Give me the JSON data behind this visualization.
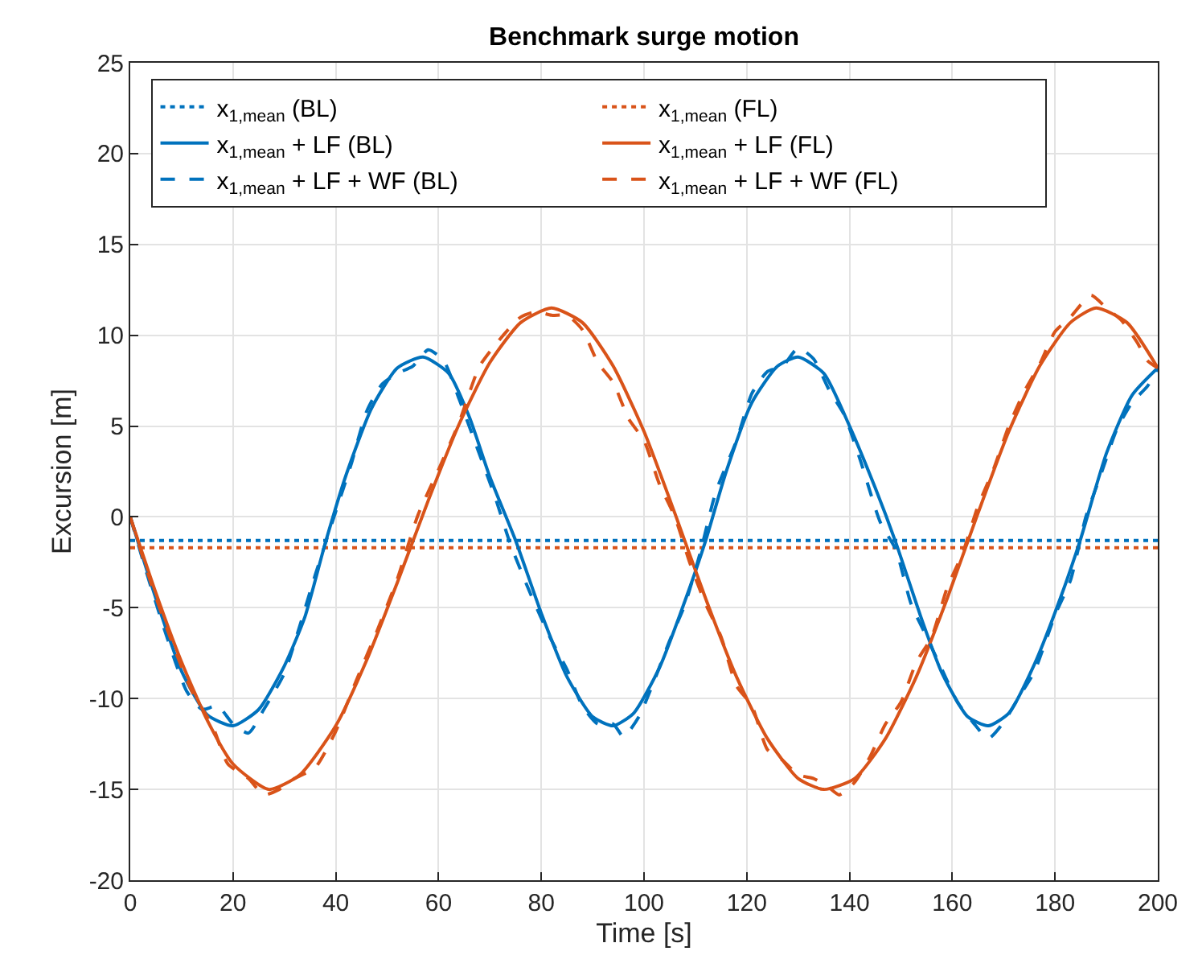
{
  "chart_data": {
    "type": "line",
    "title": "Benchmark surge motion",
    "xlabel": "Time [s]",
    "ylabel": "Excursion [m]",
    "xlim": [
      0,
      200
    ],
    "xticks": [
      0,
      20,
      40,
      60,
      80,
      100,
      120,
      140,
      160,
      180,
      200
    ],
    "ylim": [
      -20,
      25
    ],
    "yticks": [
      -20,
      -15,
      -10,
      -5,
      0,
      5,
      10,
      15,
      20,
      25
    ],
    "grid": true,
    "legend": "top left",
    "marker": "none",
    "series": [
      {
        "name": "x$_{1,mean}$ (BL)",
        "color": "#0072bd",
        "line_style": "dotted",
        "x": [
          0,
          200
        ],
        "values": [
          -1.3,
          -1.3
        ]
      },
      {
        "name": "x$_{1,mean}$ (FL)",
        "color": "#d95319",
        "line_style": "dotted",
        "x": [
          0,
          200
        ],
        "values": [
          -1.7,
          -1.7
        ]
      },
      {
        "name": "x$_{1,mean}$ + LF (BL)",
        "color": "#0072bd",
        "line_style": "solid",
        "x": [
          0,
          5,
          10,
          15,
          20,
          25,
          30,
          34,
          38,
          42,
          47,
          52,
          57,
          62,
          66,
          70,
          75,
          80,
          85,
          90,
          94,
          98,
          103,
          108,
          112,
          116,
          121,
          126,
          130,
          135,
          140,
          145,
          149,
          154,
          158,
          163,
          167,
          171,
          176,
          181,
          185,
          190,
          195,
          200
        ],
        "values": [
          0,
          -4.5,
          -8.5,
          -10.9,
          -11.5,
          -10.6,
          -8.2,
          -5.5,
          -1.4,
          2.3,
          6.0,
          8.2,
          8.8,
          7.9,
          5.5,
          2.2,
          -1.3,
          -5.3,
          -8.8,
          -11.0,
          -11.5,
          -10.8,
          -8.3,
          -4.6,
          -1.3,
          2.5,
          6.3,
          8.3,
          8.8,
          7.9,
          5.0,
          1.6,
          -1.4,
          -5.6,
          -8.6,
          -11.0,
          -11.5,
          -10.8,
          -8.1,
          -4.5,
          -1.2,
          3.5,
          6.7,
          8.2
        ]
      },
      {
        "name": "x$_{1,mean}$ + LF (FL)",
        "color": "#d95319",
        "line_style": "solid",
        "x": [
          0,
          5,
          10,
          15,
          20,
          27,
          33,
          40,
          46,
          52,
          58,
          64,
          70,
          76,
          82,
          88,
          94,
          100,
          106,
          112,
          118,
          124,
          130,
          135,
          141,
          147,
          153,
          159,
          165,
          171,
          177,
          183,
          188,
          194,
          200
        ],
        "values": [
          0,
          -4.2,
          -8.0,
          -11.2,
          -13.6,
          -15.0,
          -14.2,
          -11.5,
          -7.9,
          -3.6,
          0.9,
          5.1,
          8.5,
          10.7,
          11.5,
          10.7,
          8.3,
          4.7,
          0.2,
          -4.5,
          -8.8,
          -12.2,
          -14.4,
          -15.0,
          -14.4,
          -12.2,
          -8.8,
          -4.5,
          0.2,
          4.7,
          8.3,
          10.7,
          11.5,
          10.7,
          8.2
        ]
      },
      {
        "name": "x$_{1,mean}$ + LF + WF (BL)",
        "color": "#0072bd",
        "line_style": "dashed",
        "x": [
          0,
          3,
          7,
          11,
          14,
          17,
          20,
          23,
          26,
          30,
          33,
          36,
          40,
          43,
          46,
          49,
          52,
          55,
          58,
          61,
          64,
          67,
          71,
          74,
          78,
          82,
          85,
          88,
          91,
          94,
          96,
          99,
          102,
          105,
          108,
          111,
          114,
          118,
          121,
          124,
          127,
          130,
          133,
          136,
          139,
          142,
          146,
          149,
          152,
          155,
          158,
          161,
          164,
          167,
          170,
          173,
          176,
          180,
          183,
          186,
          189,
          192,
          195,
          198,
          200
        ],
        "values": [
          0,
          -2.9,
          -6.5,
          -9.6,
          -10.6,
          -10.4,
          -11.4,
          -11.9,
          -10.6,
          -8.6,
          -6.0,
          -3.2,
          0.3,
          2.9,
          5.8,
          7.3,
          7.9,
          8.3,
          9.2,
          8.6,
          6.5,
          4.2,
          1.1,
          -1.5,
          -4.3,
          -6.8,
          -8.4,
          -10.4,
          -11.4,
          -11.4,
          -12.1,
          -11.0,
          -9.0,
          -6.8,
          -4.8,
          -1.9,
          1.4,
          4.2,
          6.8,
          8.0,
          8.3,
          9.3,
          8.7,
          7.0,
          5.6,
          3.2,
          -0.3,
          -1.8,
          -4.8,
          -6.6,
          -8.4,
          -10.2,
          -11.3,
          -12.2,
          -11.3,
          -9.9,
          -8.5,
          -5.4,
          -3.5,
          0.0,
          2.4,
          4.8,
          6.3,
          7.2,
          8.2
        ]
      },
      {
        "name": "x$_{1,mean}$ + LF + WF (FL)",
        "color": "#d95319",
        "line_style": "dashed",
        "x": [
          0,
          4,
          8,
          12,
          16,
          19,
          23,
          26,
          29,
          32,
          36,
          40,
          44,
          48,
          52,
          56,
          60,
          64,
          68,
          72,
          76,
          79,
          82,
          85,
          88,
          91,
          94,
          97,
          100,
          103,
          106,
          109,
          112,
          115,
          118,
          121,
          124,
          127,
          130,
          133,
          136,
          138,
          141,
          144,
          147,
          150,
          153,
          156,
          159,
          162,
          165,
          168,
          171,
          174,
          177,
          180,
          183,
          187,
          190,
          193,
          196,
          198,
          200
        ],
        "values": [
          0,
          -3.6,
          -6.8,
          -9.6,
          -11.5,
          -13.6,
          -14.4,
          -15.3,
          -15.0,
          -14.4,
          -13.8,
          -11.8,
          -9.0,
          -6.3,
          -3.4,
          0.1,
          2.6,
          5.2,
          8.3,
          9.8,
          11.0,
          11.3,
          11.1,
          11.1,
          10.3,
          8.5,
          7.4,
          5.4,
          4.2,
          1.8,
          0.0,
          -2.6,
          -4.8,
          -6.6,
          -9.3,
          -10.4,
          -12.8,
          -13.4,
          -14.2,
          -14.4,
          -14.9,
          -15.3,
          -14.6,
          -13.2,
          -11.4,
          -10.2,
          -8.0,
          -6.6,
          -3.9,
          -2.0,
          0.6,
          2.6,
          5.0,
          6.9,
          8.4,
          10.2,
          11.0,
          12.2,
          11.5,
          10.8,
          9.6,
          8.6,
          8.2
        ]
      }
    ]
  }
}
